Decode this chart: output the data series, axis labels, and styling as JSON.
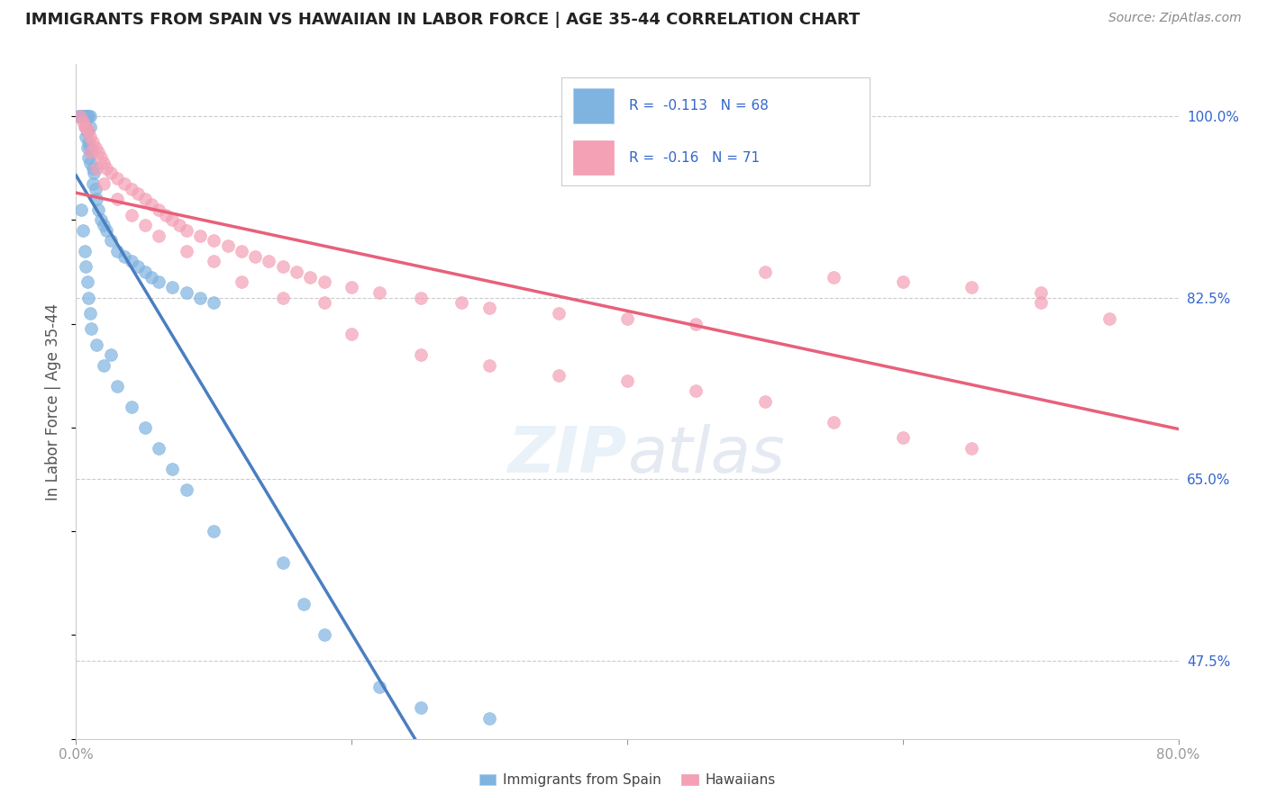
{
  "title": "IMMIGRANTS FROM SPAIN VS HAWAIIAN IN LABOR FORCE | AGE 35-44 CORRELATION CHART",
  "source": "Source: ZipAtlas.com",
  "ylabel": "In Labor Force | Age 35-44",
  "xlim": [
    0.0,
    80.0
  ],
  "ylim": [
    40.0,
    105.0
  ],
  "yticks_right": [
    47.5,
    65.0,
    82.5,
    100.0
  ],
  "yticklabels_right": [
    "47.5%",
    "65.0%",
    "82.5%",
    "100.0%"
  ],
  "r_spain": -0.113,
  "n_spain": 68,
  "r_hawaii": -0.16,
  "n_hawaii": 71,
  "color_spain": "#7fb3e0",
  "color_hawaii": "#f4a0b5",
  "color_spain_line": "#4a7fc0",
  "color_hawaii_line": "#e8607a",
  "color_dashed": "#a0c4e8",
  "watermark_zip": "ZIP",
  "watermark_atlas": "atlas",
  "spain_x": [
    0.2,
    0.3,
    0.3,
    0.4,
    0.5,
    0.5,
    0.6,
    0.6,
    0.6,
    0.7,
    0.7,
    0.7,
    0.8,
    0.8,
    0.8,
    0.9,
    0.9,
    0.9,
    1.0,
    1.0,
    1.0,
    1.0,
    1.1,
    1.2,
    1.2,
    1.3,
    1.4,
    1.5,
    1.6,
    1.8,
    2.0,
    2.2,
    2.5,
    3.0,
    3.5,
    4.0,
    4.5,
    5.0,
    5.5,
    6.0,
    7.0,
    8.0,
    9.0,
    10.0,
    0.4,
    0.5,
    0.6,
    0.7,
    0.8,
    0.9,
    1.0,
    1.1,
    1.5,
    2.0,
    3.0,
    4.0,
    5.0,
    6.0,
    7.0,
    8.0,
    10.0,
    15.0,
    16.5,
    18.0,
    22.0,
    25.0,
    2.5,
    30.0
  ],
  "spain_y": [
    100.0,
    100.0,
    100.0,
    100.0,
    100.0,
    100.0,
    100.0,
    100.0,
    100.0,
    100.0,
    99.0,
    98.0,
    100.0,
    98.5,
    97.0,
    100.0,
    97.5,
    96.0,
    100.0,
    99.0,
    97.0,
    95.5,
    96.5,
    95.0,
    93.5,
    94.5,
    93.0,
    92.0,
    91.0,
    90.0,
    89.5,
    89.0,
    88.0,
    87.0,
    86.5,
    86.0,
    85.5,
    85.0,
    84.5,
    84.0,
    83.5,
    83.0,
    82.5,
    82.0,
    91.0,
    89.0,
    87.0,
    85.5,
    84.0,
    82.5,
    81.0,
    79.5,
    78.0,
    76.0,
    74.0,
    72.0,
    70.0,
    68.0,
    66.0,
    64.0,
    60.0,
    57.0,
    53.0,
    50.0,
    45.0,
    43.0,
    77.0,
    42.0
  ],
  "hawaii_x": [
    0.3,
    0.5,
    0.7,
    0.9,
    1.0,
    1.2,
    1.4,
    1.6,
    1.8,
    2.0,
    2.2,
    2.5,
    3.0,
    3.5,
    4.0,
    4.5,
    5.0,
    5.5,
    6.0,
    6.5,
    7.0,
    7.5,
    8.0,
    9.0,
    10.0,
    11.0,
    12.0,
    13.0,
    14.0,
    15.0,
    16.0,
    17.0,
    18.0,
    20.0,
    22.0,
    25.0,
    28.0,
    30.0,
    35.0,
    40.0,
    45.0,
    50.0,
    55.0,
    60.0,
    65.0,
    70.0,
    1.0,
    1.5,
    2.0,
    3.0,
    4.0,
    5.0,
    6.0,
    8.0,
    10.0,
    12.0,
    15.0,
    18.0,
    20.0,
    25.0,
    30.0,
    35.0,
    40.0,
    45.0,
    50.0,
    55.0,
    60.0,
    65.0,
    70.0,
    0.6,
    75.0
  ],
  "hawaii_y": [
    100.0,
    99.5,
    99.0,
    98.5,
    98.0,
    97.5,
    97.0,
    96.5,
    96.0,
    95.5,
    95.0,
    94.5,
    94.0,
    93.5,
    93.0,
    92.5,
    92.0,
    91.5,
    91.0,
    90.5,
    90.0,
    89.5,
    89.0,
    88.5,
    88.0,
    87.5,
    87.0,
    86.5,
    86.0,
    85.5,
    85.0,
    84.5,
    84.0,
    83.5,
    83.0,
    82.5,
    82.0,
    81.5,
    81.0,
    80.5,
    80.0,
    85.0,
    84.5,
    84.0,
    83.5,
    83.0,
    96.5,
    95.0,
    93.5,
    92.0,
    90.5,
    89.5,
    88.5,
    87.0,
    86.0,
    84.0,
    82.5,
    82.0,
    79.0,
    77.0,
    76.0,
    75.0,
    74.5,
    73.5,
    72.5,
    70.5,
    69.0,
    68.0,
    82.0,
    99.0,
    80.5
  ]
}
